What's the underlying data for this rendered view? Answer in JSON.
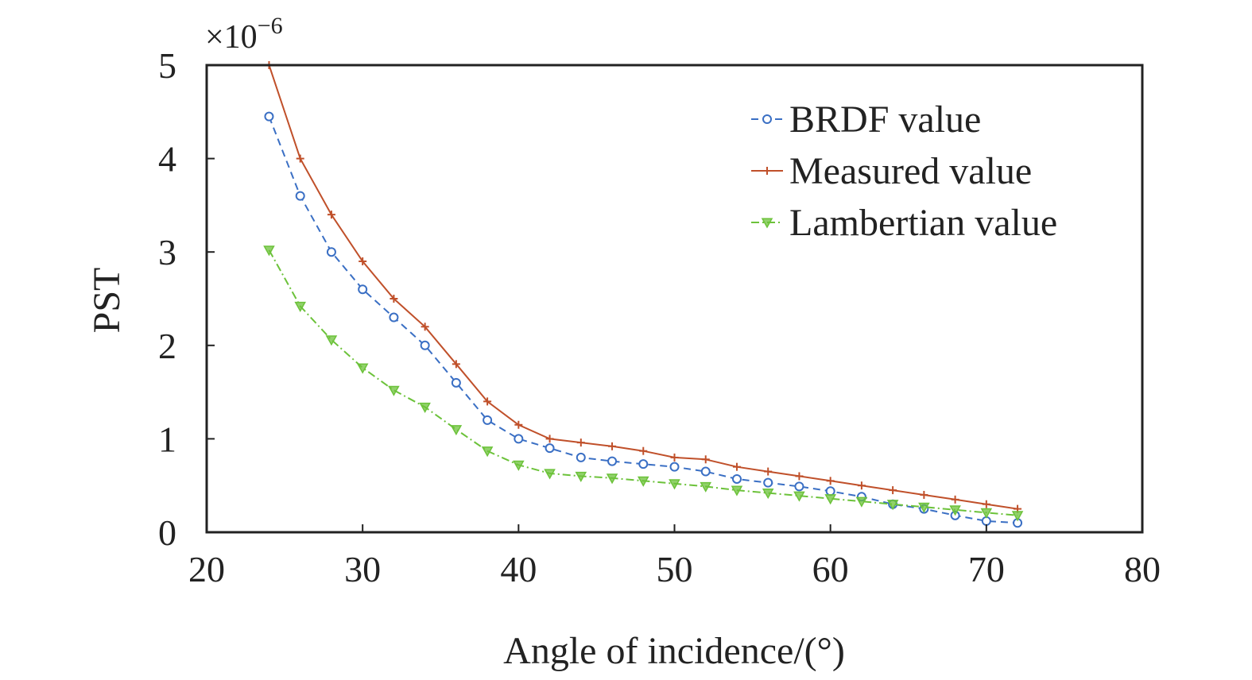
{
  "chart_data": {
    "type": "line",
    "title": "",
    "xlabel": "Angle of incidence/(°)",
    "ylabel": "PST",
    "y_multiplier": {
      "base": "×10",
      "exponent": "−6"
    },
    "xlim": [
      20,
      80
    ],
    "ylim": [
      0,
      5
    ],
    "x_ticks": [
      20,
      30,
      40,
      50,
      60,
      70,
      80
    ],
    "y_ticks": [
      0,
      1,
      2,
      3,
      4,
      5
    ],
    "grid": false,
    "legend_position": "top-right",
    "series": [
      {
        "name": "BRDF value",
        "color": "#3a6fc4",
        "marker": "circle",
        "line_style": "dashed",
        "x": [
          24,
          26,
          28,
          30,
          32,
          34,
          36,
          38,
          40,
          42,
          44,
          46,
          48,
          50,
          52,
          54,
          56,
          58,
          60,
          62,
          64,
          66,
          68,
          70,
          72
        ],
        "values": [
          4.45,
          3.6,
          3.0,
          2.6,
          2.3,
          2.0,
          1.6,
          1.2,
          1.0,
          0.9,
          0.8,
          0.76,
          0.73,
          0.7,
          0.65,
          0.57,
          0.53,
          0.49,
          0.44,
          0.38,
          0.3,
          0.25,
          0.18,
          0.12,
          0.1
        ]
      },
      {
        "name": "Measured value",
        "color": "#c0502a",
        "marker": "plus",
        "line_style": "solid",
        "x": [
          24,
          26,
          28,
          30,
          32,
          34,
          36,
          38,
          40,
          42,
          44,
          46,
          48,
          50,
          52,
          54,
          56,
          58,
          60,
          62,
          64,
          66,
          68,
          70,
          72
        ],
        "values": [
          5.0,
          4.0,
          3.4,
          2.9,
          2.5,
          2.2,
          1.8,
          1.4,
          1.15,
          1.0,
          0.96,
          0.92,
          0.87,
          0.8,
          0.78,
          0.7,
          0.65,
          0.6,
          0.55,
          0.5,
          0.45,
          0.4,
          0.35,
          0.3,
          0.25
        ]
      },
      {
        "name": "Lambertian value",
        "color": "#6cc23a",
        "marker": "triangle-down",
        "line_style": "dash-dot",
        "x": [
          24,
          26,
          28,
          30,
          32,
          34,
          36,
          38,
          40,
          42,
          44,
          46,
          48,
          50,
          52,
          54,
          56,
          58,
          60,
          62,
          64,
          66,
          68,
          70,
          72
        ],
        "values": [
          3.02,
          2.42,
          2.06,
          1.76,
          1.52,
          1.34,
          1.1,
          0.87,
          0.72,
          0.63,
          0.6,
          0.58,
          0.55,
          0.52,
          0.49,
          0.45,
          0.42,
          0.39,
          0.36,
          0.33,
          0.3,
          0.27,
          0.24,
          0.21,
          0.18
        ]
      }
    ]
  }
}
